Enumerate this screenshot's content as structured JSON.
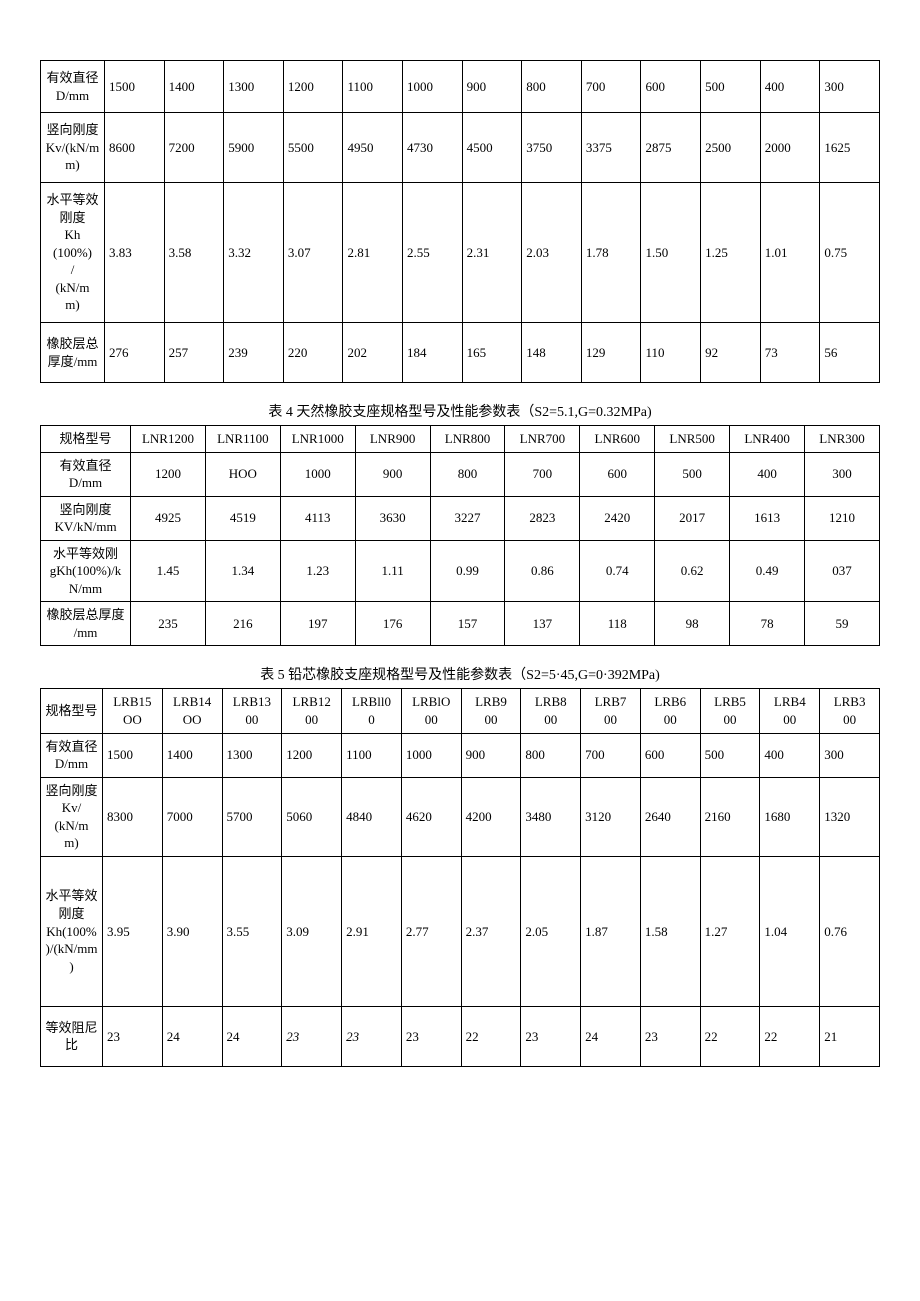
{
  "table1": {
    "rows": [
      {
        "label": "有效直径\nD/mm",
        "vals": [
          "1500",
          "1400",
          "1300",
          "1200",
          "1100",
          "1000",
          "900",
          "800",
          "700",
          "600",
          "500",
          "400",
          "300"
        ],
        "cls": "h-med",
        "align": "left"
      },
      {
        "label": "竖向刚度\nKv/(kN/m\nm)",
        "vals": [
          "8600",
          "7200",
          "5900",
          "5500",
          "4950",
          "4730",
          "4500",
          "3750",
          "3375",
          "2875",
          "2500",
          "2000",
          "1625"
        ],
        "cls": "h-tall",
        "align": "left"
      },
      {
        "label": "水平等效\n刚度\nKh\n(100%)\n/\n(kN/m\nm)",
        "vals": [
          "3.83",
          "3.58",
          "3.32",
          "3.07",
          "2.81",
          "2.55",
          "2.31",
          "2.03",
          "1.78",
          "1.50",
          "1.25",
          "1.01",
          "0.75"
        ],
        "cls": "h-big",
        "align": "left"
      },
      {
        "label": "橡胶层总\n厚度/mm",
        "vals": [
          "276",
          "257",
          "239",
          "220",
          "202",
          "184",
          "165",
          "148",
          "129",
          "110",
          "92",
          "73",
          "56"
        ],
        "cls": "h-thk",
        "align": "left"
      }
    ]
  },
  "caption2": "表 4 天然橡胶支座规格型号及性能参数表（S2=5.1,G=0.32MPa)",
  "table2": {
    "rows": [
      {
        "label": "规格型号",
        "vals": [
          "LNR1200",
          "LNR1100",
          "LNR1000",
          "LNR900",
          "LNR800",
          "LNR700",
          "LNR600",
          "LNR500",
          "LNR400",
          "LNR300"
        ]
      },
      {
        "label": "有效直径\nD/mm",
        "vals": [
          "1200",
          "HOO",
          "1000",
          "900",
          "800",
          "700",
          "600",
          "500",
          "400",
          "300"
        ]
      },
      {
        "label": "竖向刚度\nKV/kN/mm",
        "vals": [
          "4925",
          "4519",
          "4113",
          "3630",
          "3227",
          "2823",
          "2420",
          "2017",
          "1613",
          "1210"
        ]
      },
      {
        "label": "水平等效刚\ngKh(100%)/k\nN/mm",
        "vals": [
          "1.45",
          "1.34",
          "1.23",
          "1.11",
          "0.99",
          "0.86",
          "0.74",
          "0.62",
          "0.49",
          "037"
        ]
      },
      {
        "label": "橡胶层总厚度\n/mm",
        "vals": [
          "235",
          "216",
          "197",
          "176",
          "157",
          "137",
          "118",
          "98",
          "78",
          "59"
        ]
      }
    ]
  },
  "caption3": "表 5 铅芯橡胶支座规格型号及性能参数表（S2=5·45,G=0·392MPa)",
  "table3": {
    "rows": [
      {
        "label": "规格型号",
        "vals": [
          "LRB15\nOO",
          "LRB14\nOO",
          "LRB13\n00",
          "LRB12\n00",
          "LRBll0\n0",
          "LRBlO\n00",
          "LRB9\n00",
          "LRB8\n00",
          "LRB7\n00",
          "LRB6\n00",
          "LRB5\n00",
          "LRB4\n00",
          "LRB3\n00"
        ],
        "cls": "",
        "align": "center"
      },
      {
        "label": "有效直径\nD/mm",
        "vals": [
          "1500",
          "1400",
          "1300",
          "1200",
          "1100",
          "1000",
          "900",
          "800",
          "700",
          "600",
          "500",
          "400",
          "300"
        ],
        "cls": "",
        "align": "left"
      },
      {
        "label": "竖向刚度\nKv/\n(kN/m\nm)",
        "vals": [
          "8300",
          "7000",
          "5700",
          "5060",
          "4840",
          "4620",
          "4200",
          "3480",
          "3120",
          "2640",
          "2160",
          "1680",
          "1320"
        ],
        "cls": "h-tall",
        "align": "left"
      },
      {
        "label": "水平等效\n刚度\nKh(100%\n)/(kN/mm\n)",
        "vals": [
          "3.95",
          "3.90",
          "3.55",
          "3.09",
          "2.91",
          "2.77",
          "2.37",
          "2.05",
          "1.87",
          "1.58",
          "1.27",
          "1.04",
          "0.76"
        ],
        "cls": "h-huge",
        "align": "left"
      },
      {
        "label": "等效阻尼\n比",
        "vals": [
          "23",
          "24",
          "24",
          "23",
          "23",
          "23",
          "22",
          "23",
          "24",
          "23",
          "22",
          "22",
          "21"
        ],
        "cls": "h-thk",
        "align": "left",
        "italic": [
          3,
          4
        ]
      }
    ]
  }
}
